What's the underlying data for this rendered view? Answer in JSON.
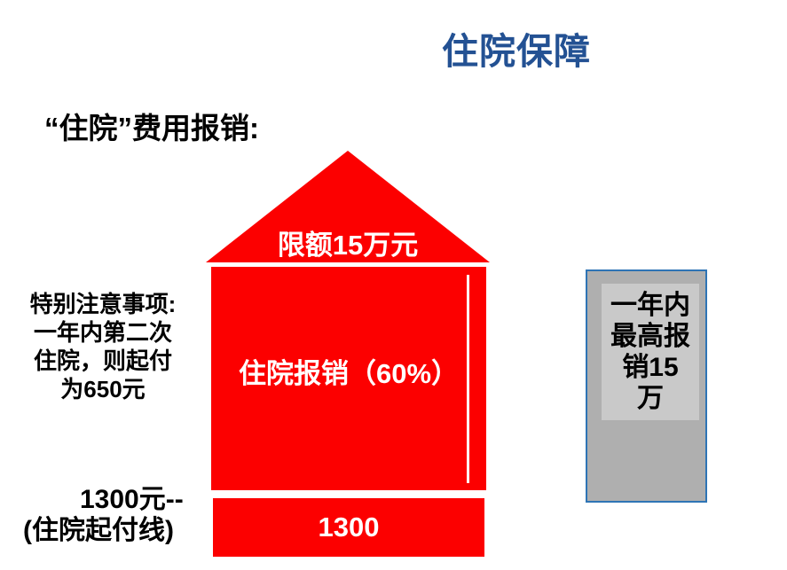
{
  "title": "住院保障",
  "heading": "“住院”费用报销:",
  "note": "特别注意事项:\n一年内第二次\n住院，则起付\n为650元",
  "deductible": {
    "line1": "1300元--",
    "line2": "(住院起付线)"
  },
  "house": {
    "roof_label": "限额15万元",
    "body_label": "住院报销（60%）",
    "base_label": "1300"
  },
  "annual_cap_label": "一年内\n最高报\n销15\n万",
  "colors": {
    "red": "#FC0000",
    "title_blue": "#235193",
    "box_border": "#2E74B5",
    "box_fill": "#AFAFAF",
    "box_inner_fill": "#C9C9C9"
  }
}
